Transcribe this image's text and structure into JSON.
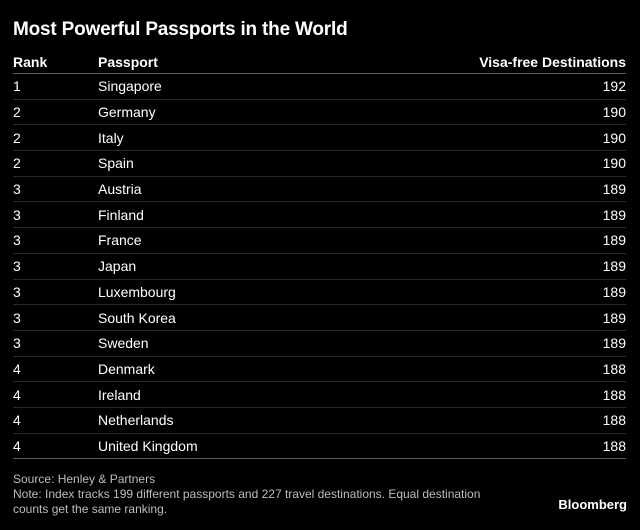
{
  "title": "Most Powerful Passports in the World",
  "chart_data": {
    "type": "table",
    "title": "Most Powerful Passports in the World",
    "columns": [
      "Rank",
      "Passport",
      "Visa-free Destinations"
    ],
    "rows": [
      {
        "rank": "1",
        "passport": "Singapore",
        "destinations": "192"
      },
      {
        "rank": "2",
        "passport": "Germany",
        "destinations": "190"
      },
      {
        "rank": "2",
        "passport": "Italy",
        "destinations": "190"
      },
      {
        "rank": "2",
        "passport": "Spain",
        "destinations": "190"
      },
      {
        "rank": "3",
        "passport": "Austria",
        "destinations": "189"
      },
      {
        "rank": "3",
        "passport": "Finland",
        "destinations": "189"
      },
      {
        "rank": "3",
        "passport": "France",
        "destinations": "189"
      },
      {
        "rank": "3",
        "passport": "Japan",
        "destinations": "189"
      },
      {
        "rank": "3",
        "passport": "Luxembourg",
        "destinations": "189"
      },
      {
        "rank": "3",
        "passport": "South Korea",
        "destinations": "189"
      },
      {
        "rank": "3",
        "passport": "Sweden",
        "destinations": "189"
      },
      {
        "rank": "4",
        "passport": "Denmark",
        "destinations": "188"
      },
      {
        "rank": "4",
        "passport": "Ireland",
        "destinations": "188"
      },
      {
        "rank": "4",
        "passport": "Netherlands",
        "destinations": "188"
      },
      {
        "rank": "4",
        "passport": "United Kingdom",
        "destinations": "188"
      }
    ]
  },
  "source": "Source: Henley & Partners",
  "note": "Note: Index tracks 199 different passports and 227 travel destinations. Equal destination counts get the same ranking.",
  "brand": "Bloomberg",
  "colors": {
    "background": "#000000",
    "text": "#ffffff",
    "muted_text": "#bdbdbd"
  }
}
